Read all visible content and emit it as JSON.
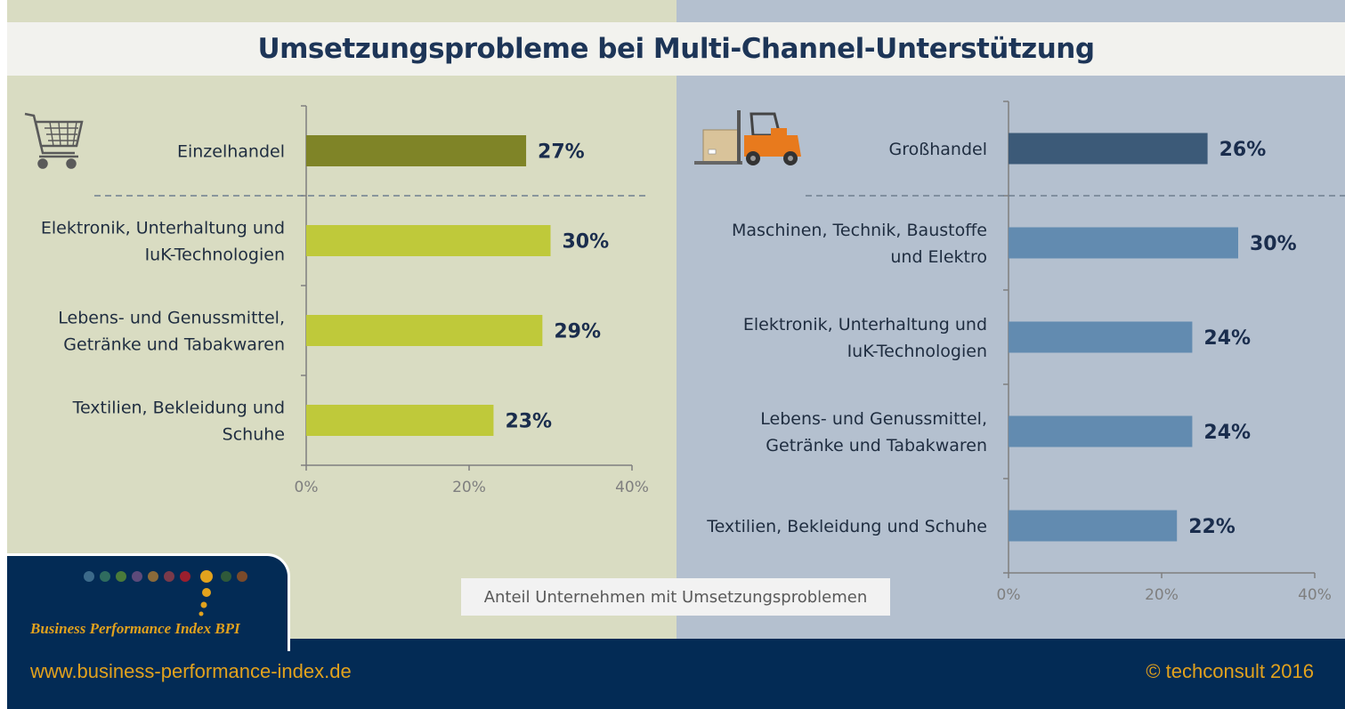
{
  "title": "Umsetzungsprobleme bei Multi-Channel-Unterstützung",
  "legend": "Anteil Unternehmen mit Umsetzungsproblemen",
  "footer": {
    "url": "www.business-performance-index.de",
    "copyright": "© techconsult 2016",
    "logo_text": "Business Performance Index BPI"
  },
  "icons": {
    "left": "shopping-cart-icon",
    "right": "forklift-icon"
  },
  "colors": {
    "left_total_bar": "#7f8427",
    "left_bar": "#bfc93a",
    "right_total_bar": "#3c5a78",
    "right_bar": "#628bb0",
    "value_text": "#1a2d4d",
    "footer_bg": "#032b55",
    "footer_text": "#e2a21d"
  },
  "chart_data": [
    {
      "type": "bar",
      "orientation": "horizontal",
      "categories": [
        "Einzelhandel",
        "Elektronik, Unterhaltung und IuK-Technologien",
        "Lebens- und Genussmittel, Getränke und Tabakwaren",
        "Textilien, Bekleidung und Schuhe"
      ],
      "category_lines": [
        [
          "Einzelhandel"
        ],
        [
          "Elektronik, Unterhaltung und",
          "IuK-Technologien"
        ],
        [
          "Lebens- und Genussmittel,",
          "Getränke und Tabakwaren"
        ],
        [
          "Textilien, Bekleidung und",
          "Schuhe"
        ]
      ],
      "values": [
        27,
        30,
        29,
        23
      ],
      "value_labels": [
        "27%",
        "30%",
        "29%",
        "23%"
      ],
      "xlim": [
        0,
        40
      ],
      "xticks": [
        "0%",
        "20%",
        "40%"
      ],
      "grid": false
    },
    {
      "type": "bar",
      "orientation": "horizontal",
      "categories": [
        "Großhandel",
        "Maschinen, Technik, Baustoffe und Elektro",
        "Elektronik, Unterhaltung und IuK-Technologien",
        "Lebens- und Genussmittel, Getränke und Tabakwaren",
        "Textilien, Bekleidung und Schuhe"
      ],
      "category_lines": [
        [
          "Großhandel"
        ],
        [
          "Maschinen, Technik, Baustoffe",
          "und Elektro"
        ],
        [
          "Elektronik, Unterhaltung und",
          "IuK-Technologien"
        ],
        [
          "Lebens- und Genussmittel,",
          "Getränke und Tabakwaren"
        ],
        [
          "Textilien, Bekleidung und Schuhe"
        ]
      ],
      "values": [
        26,
        30,
        24,
        24,
        22
      ],
      "value_labels": [
        "26%",
        "30%",
        "24%",
        "24%",
        "22%"
      ],
      "xlim": [
        0,
        40
      ],
      "xticks": [
        "0%",
        "20%",
        "40%"
      ],
      "grid": false
    }
  ]
}
